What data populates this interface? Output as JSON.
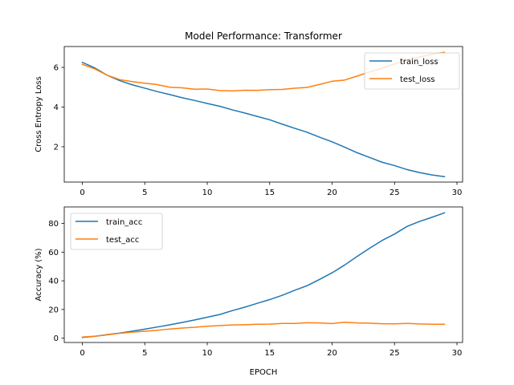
{
  "chart_data": [
    {
      "type": "line",
      "title": "Model Performance: Transformer",
      "xlabel": "",
      "ylabel": "Cross Entropy Loss",
      "xlim": [
        -1.45,
        30.45
      ],
      "ylim": [
        0.22,
        7.05
      ],
      "xticks": [
        0,
        5,
        10,
        15,
        20,
        25,
        30
      ],
      "yticks": [
        2,
        4,
        6
      ],
      "grid": false,
      "legend": "top-right",
      "x": [
        0,
        1,
        2,
        3,
        4,
        5,
        6,
        7,
        8,
        9,
        10,
        11,
        12,
        13,
        14,
        15,
        16,
        17,
        18,
        19,
        20,
        21,
        22,
        23,
        24,
        25,
        26,
        27,
        28,
        29
      ],
      "series": [
        {
          "name": "train_loss",
          "color": "#1f77b4",
          "values": [
            6.25,
            5.97,
            5.6,
            5.33,
            5.12,
            4.95,
            4.78,
            4.63,
            4.47,
            4.33,
            4.18,
            4.04,
            3.86,
            3.7,
            3.53,
            3.36,
            3.14,
            2.93,
            2.73,
            2.48,
            2.25,
            1.98,
            1.7,
            1.46,
            1.22,
            1.05,
            0.85,
            0.7,
            0.58,
            0.49
          ]
        },
        {
          "name": "test_loss",
          "color": "#ff7f0e",
          "values": [
            6.15,
            5.92,
            5.6,
            5.38,
            5.28,
            5.2,
            5.13,
            5.0,
            4.97,
            4.9,
            4.91,
            4.83,
            4.81,
            4.85,
            4.84,
            4.88,
            4.89,
            4.95,
            4.99,
            5.14,
            5.3,
            5.36,
            5.56,
            5.77,
            5.96,
            6.17,
            6.36,
            6.52,
            6.66,
            6.76
          ]
        }
      ]
    },
    {
      "type": "line",
      "title": "",
      "xlabel": "EPOCH",
      "ylabel": "Accuracy (%)",
      "xlim": [
        -1.45,
        30.45
      ],
      "ylim": [
        -3.0,
        91.5
      ],
      "xticks": [
        0,
        5,
        10,
        15,
        20,
        25,
        30
      ],
      "yticks": [
        0,
        20,
        40,
        60,
        80
      ],
      "grid": false,
      "legend": "top-left",
      "x": [
        0,
        1,
        2,
        3,
        4,
        5,
        6,
        7,
        8,
        9,
        10,
        11,
        12,
        13,
        14,
        15,
        16,
        17,
        18,
        19,
        20,
        21,
        22,
        23,
        24,
        25,
        26,
        27,
        28,
        29
      ],
      "series": [
        {
          "name": "train_acc",
          "color": "#1f77b4",
          "values": [
            0.5,
            1.3,
            2.5,
            3.6,
            4.9,
            6.3,
            7.8,
            9.3,
            11.0,
            12.7,
            14.6,
            16.5,
            19.2,
            21.6,
            24.3,
            26.9,
            29.9,
            33.4,
            36.6,
            41.0,
            45.6,
            51.0,
            57.0,
            62.7,
            68.1,
            72.6,
            77.9,
            81.4,
            84.3,
            87.4
          ]
        },
        {
          "name": "test_acc",
          "color": "#ff7f0e",
          "values": [
            0.8,
            1.4,
            2.3,
            3.4,
            4.2,
            4.8,
            5.5,
            6.4,
            7.1,
            7.6,
            8.3,
            8.8,
            9.2,
            9.4,
            9.7,
            9.8,
            10.3,
            10.3,
            10.8,
            10.6,
            10.2,
            11.1,
            10.6,
            10.5,
            10.1,
            10.0,
            10.3,
            9.9,
            9.7,
            9.7
          ]
        }
      ]
    }
  ]
}
